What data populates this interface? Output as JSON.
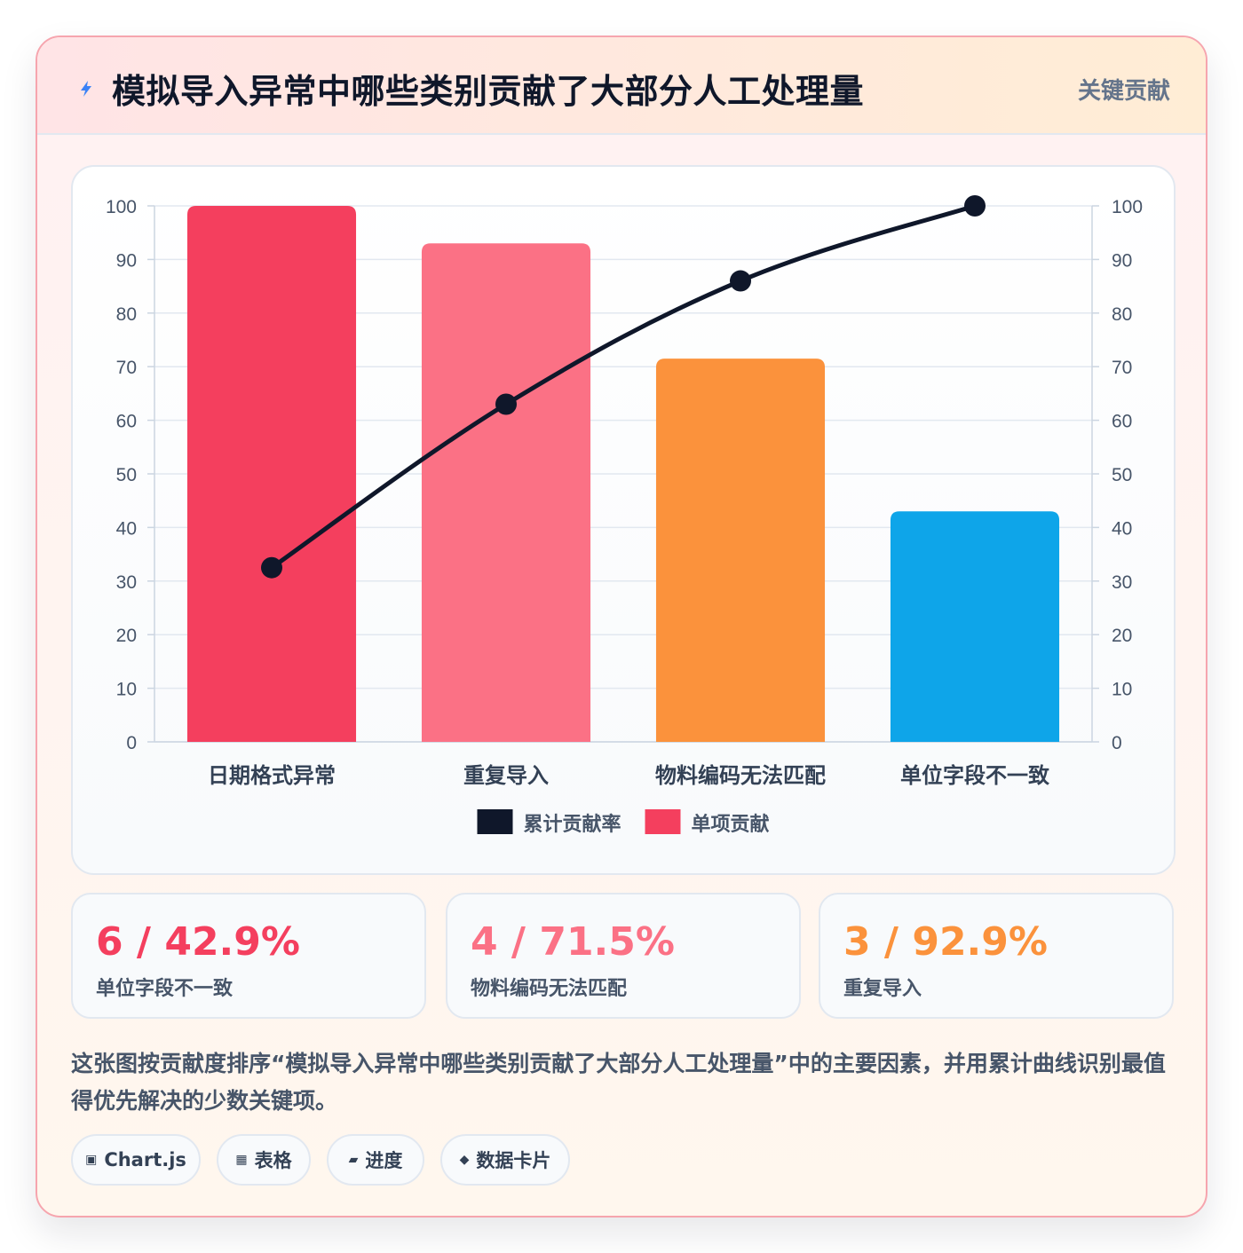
{
  "header": {
    "title": "模拟导入异常中哪些类别贡献了大部分人工处理量",
    "badge": "关键贡献",
    "icon": "lightning-icon"
  },
  "chart_data": {
    "type": "bar",
    "categories": [
      "日期格式异常",
      "重复导入",
      "物料编码无法匹配",
      "单位字段不一致"
    ],
    "series": [
      {
        "name": "单项贡献",
        "type": "bar",
        "values": [
          100,
          93,
          71.5,
          43
        ],
        "colors": [
          "#f43f5e",
          "#fb7185",
          "#fb923c",
          "#0ea5e9"
        ]
      },
      {
        "name": "累计贡献率",
        "type": "line",
        "values": [
          32.5,
          63,
          86,
          100
        ],
        "color": "#0f172a"
      }
    ],
    "ylim": [
      0,
      100
    ],
    "y_ticks": [
      0,
      10,
      20,
      30,
      40,
      50,
      60,
      70,
      80,
      90,
      100
    ],
    "y2lim": [
      0,
      100
    ],
    "y2_ticks": [
      0,
      10,
      20,
      30,
      40,
      50,
      60,
      70,
      80,
      90,
      100
    ],
    "legend": [
      {
        "label": "累计贡献率",
        "color": "#0f172a"
      },
      {
        "label": "单项贡献",
        "color": "#f43f5e"
      }
    ],
    "legend_position": "bottom",
    "grid": true
  },
  "stats": [
    {
      "value": "6 / 42.9%",
      "label": "单位字段不一致",
      "color": "#f43f5e"
    },
    {
      "value": "4 / 71.5%",
      "label": "物料编码无法匹配",
      "color": "#fb7185"
    },
    {
      "value": "3 / 92.9%",
      "label": "重复导入",
      "color": "#fb923c"
    }
  ],
  "description": "这张图按贡献度排序“模拟导入异常中哪些类别贡献了大部分人工处理量”中的主要因素，并用累计曲线识别最值得优先解决的少数关键项。",
  "tags": [
    {
      "label": "Chart.js",
      "icon": "square-icon",
      "glyph": "▣"
    },
    {
      "label": "表格",
      "icon": "grid-icon",
      "glyph": "▦"
    },
    {
      "label": "进度",
      "icon": "progress-icon",
      "glyph": "▰"
    },
    {
      "label": "数据卡片",
      "icon": "diamond-icon",
      "glyph": "◆"
    }
  ]
}
